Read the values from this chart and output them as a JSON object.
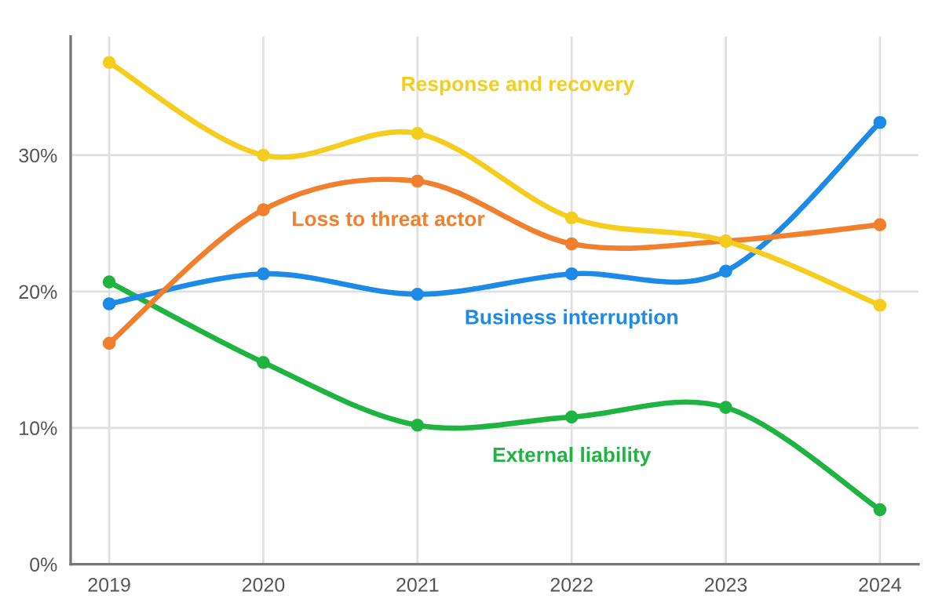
{
  "chart_data": {
    "type": "line",
    "x": [
      2019,
      2020,
      2021,
      2022,
      2023,
      2024
    ],
    "series": [
      {
        "name": "Response and recovery",
        "color": "#f5cd1e",
        "values": [
          36.8,
          30.0,
          31.6,
          25.4,
          23.7,
          19.0
        ]
      },
      {
        "name": "Loss to threat actor",
        "color": "#f07f2e",
        "values": [
          16.2,
          26.0,
          28.1,
          23.5,
          23.7,
          24.9
        ]
      },
      {
        "name": "Business interruption",
        "color": "#1c8ae6",
        "values": [
          19.1,
          21.3,
          19.8,
          21.3,
          21.5,
          32.4
        ]
      },
      {
        "name": "External liability",
        "color": "#1fb342",
        "values": [
          20.7,
          14.8,
          10.2,
          10.8,
          11.5,
          4.0
        ]
      }
    ],
    "xlim": [
      2018.75,
      2024.25
    ],
    "ylim": [
      0,
      38.7
    ],
    "xticks": [
      2019,
      2020,
      2021,
      2022,
      2023,
      2024
    ],
    "yticks": [
      {
        "value": 0,
        "label": "0%"
      },
      {
        "value": 10,
        "label": "10%"
      },
      {
        "value": 20,
        "label": "20%"
      },
      {
        "value": 30,
        "label": "30%"
      }
    ],
    "grid": true,
    "marker": "circle",
    "line_style": "solid"
  }
}
